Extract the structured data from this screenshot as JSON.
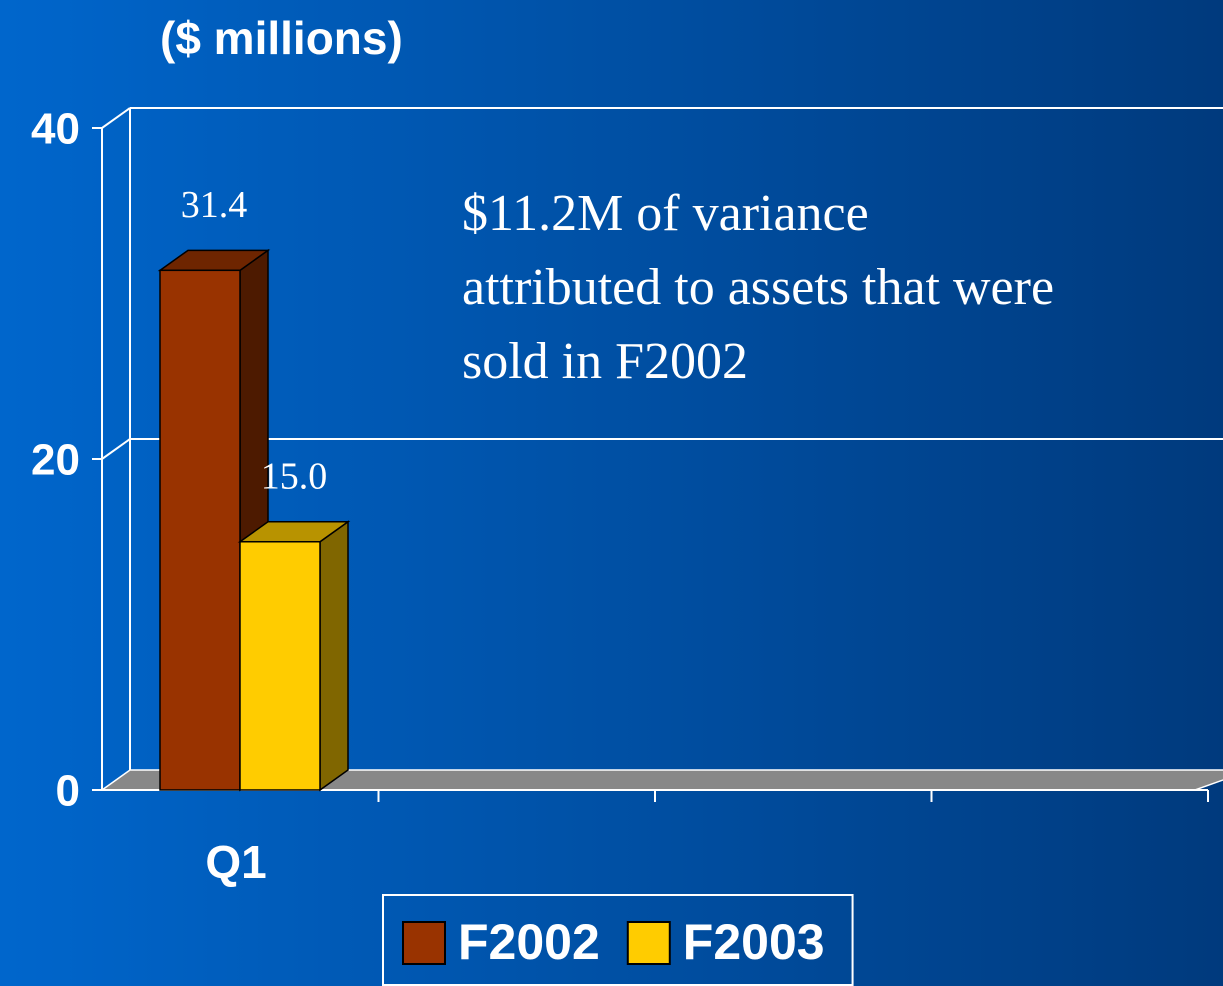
{
  "chart_data": {
    "type": "bar3d",
    "ylabel": "($ millions)",
    "annotation": [
      "$11.2M of variance",
      "attributed to assets that were",
      "sold in F2002"
    ],
    "categories": [
      "Q1",
      null,
      null,
      null
    ],
    "series": [
      {
        "name": "F2002",
        "color": "#993300",
        "values": [
          31.4,
          null,
          null,
          null
        ],
        "value_labels": [
          "31.4",
          null,
          null,
          null
        ]
      },
      {
        "name": "F2003",
        "color": "#ffcc00",
        "values": [
          15.0,
          null,
          null,
          null
        ],
        "value_labels": [
          "15.0",
          null,
          null,
          null
        ]
      }
    ],
    "ylim": [
      0,
      40
    ],
    "yticks": [
      0,
      20,
      40
    ],
    "grid": true,
    "legend": "bottom"
  }
}
